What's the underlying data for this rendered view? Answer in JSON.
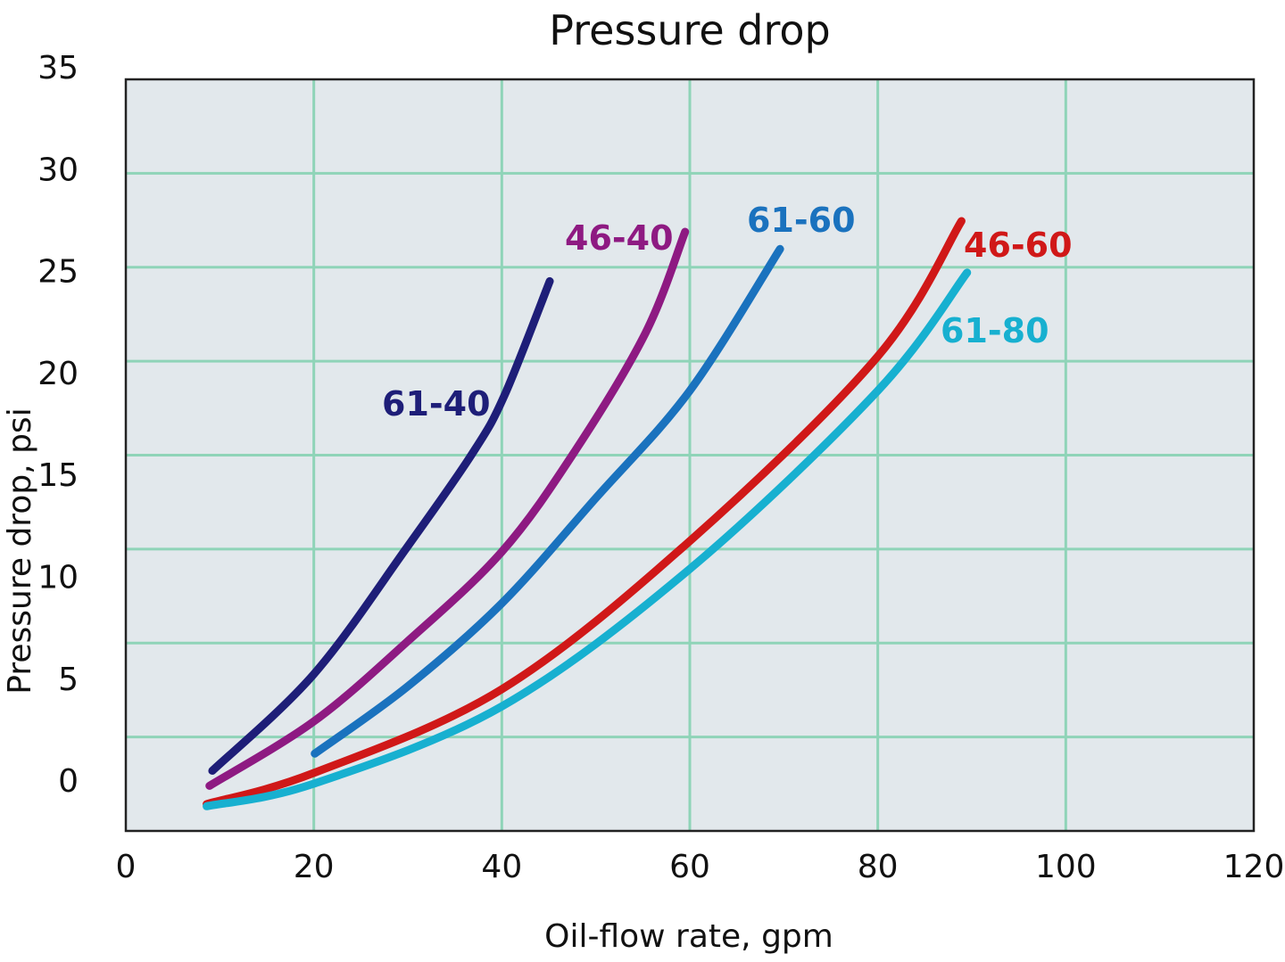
{
  "chart_data": {
    "type": "line",
    "title": "Pressure drop",
    "xlabel": "Oil-flow rate, gpm",
    "ylabel": "Pressure drop, psi",
    "xlim": [
      0,
      120
    ],
    "ylim": [
      0,
      35
    ],
    "xticks": [
      0,
      20,
      40,
      60,
      80,
      100,
      120
    ],
    "yticks": [
      35,
      30,
      25,
      20,
      15,
      10,
      5,
      0
    ],
    "grid": true,
    "legend": "inline labels",
    "colors": {
      "background": "#e2e8ec",
      "grid": "#8fd4b8",
      "frame": "#222222"
    },
    "series": [
      {
        "name": "61-40",
        "color": "#1e1e78",
        "x": [
          9.2,
          20,
          29.9,
          36.9,
          40.3,
          45.1
        ],
        "y": [
          2.8,
          7.3,
          13.2,
          17.6,
          20.3,
          25.6
        ]
      },
      {
        "name": "46-40",
        "color": "#8e1a82",
        "x": [
          8.9,
          20,
          29.9,
          40,
          47.8,
          55.3,
          59.5
        ],
        "y": [
          2.1,
          5.1,
          8.8,
          13.0,
          17.7,
          23.2,
          27.9
        ]
      },
      {
        "name": "61-60",
        "color": "#1a72be",
        "x": [
          20.1,
          29.9,
          40,
          50,
          60,
          69.6
        ],
        "y": [
          3.6,
          6.7,
          10.6,
          15.5,
          20.5,
          27.1
        ]
      },
      {
        "name": "46-60",
        "color": "#d01818",
        "x": [
          8.6,
          20,
          40,
          60,
          80,
          88.9
        ],
        "y": [
          1.25,
          2.7,
          6.6,
          13.5,
          22.1,
          28.4
        ]
      },
      {
        "name": "61-80",
        "color": "#17b0d0",
        "x": [
          8.6,
          20,
          40,
          60,
          80,
          89.5
        ],
        "y": [
          1.15,
          2.2,
          5.8,
          12.2,
          20.5,
          26.0
        ]
      }
    ]
  }
}
